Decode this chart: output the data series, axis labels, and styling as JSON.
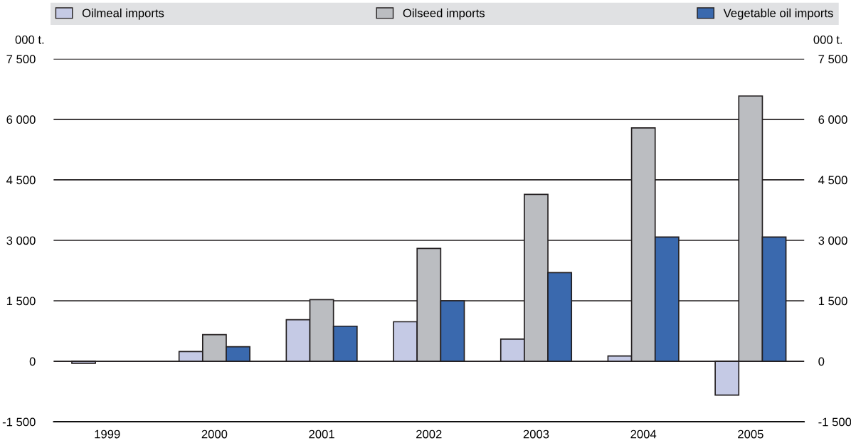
{
  "chart_data": {
    "type": "bar",
    "categories": [
      "1999",
      "2000",
      "2001",
      "2002",
      "2003",
      "2004",
      "2005"
    ],
    "series": [
      {
        "name": "Oilmeal imports",
        "color": "#c5cae5",
        "values": [
          -50,
          240,
          1030,
          980,
          550,
          130,
          -840
        ]
      },
      {
        "name": "Oilseed imports",
        "color": "#bbbdc1",
        "values": [
          null,
          660,
          1530,
          2800,
          4140,
          5790,
          6580
        ]
      },
      {
        "name": "Vegetable oil imports",
        "color": "#3a69ae",
        "values": [
          null,
          360,
          870,
          1500,
          2200,
          3080,
          3080
        ]
      }
    ],
    "ylabel": "000 t.",
    "y2label": "000 t.",
    "ylim": [
      -1500,
      7500
    ],
    "yticks": [
      {
        "value": -1500,
        "label": "-1 500"
      },
      {
        "value": 0,
        "label": "0"
      },
      {
        "value": 1500,
        "label": "1 500"
      },
      {
        "value": 3000,
        "label": "3 000"
      },
      {
        "value": 4500,
        "label": "4 500"
      },
      {
        "value": 6000,
        "label": "6 000"
      },
      {
        "value": 7500,
        "label": "7 500"
      }
    ],
    "y2lim": [
      -1500,
      7500
    ],
    "y2ticks": [
      {
        "value": -1500,
        "label": "-1 500"
      },
      {
        "value": 0,
        "label": "0"
      },
      {
        "value": 1500,
        "label": "1 500"
      },
      {
        "value": 3000,
        "label": "3 000"
      },
      {
        "value": 4500,
        "label": "4 500"
      },
      {
        "value": 6000,
        "label": "6 000"
      },
      {
        "value": 7500,
        "label": "7 500"
      }
    ],
    "grid": "y",
    "legend": "top"
  }
}
